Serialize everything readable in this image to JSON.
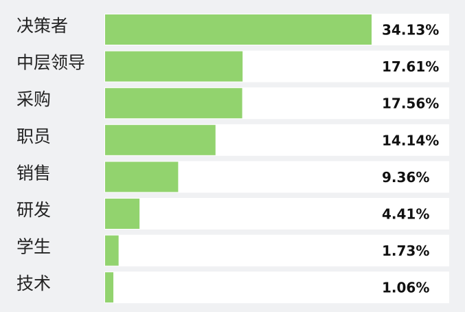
{
  "chart_data": {
    "type": "bar",
    "orientation": "horizontal",
    "categories": [
      "决策者",
      "中层领导",
      "采购",
      "职员",
      "销售",
      "研发",
      "学生",
      "技术"
    ],
    "values": [
      34.13,
      17.61,
      17.56,
      14.14,
      9.36,
      4.41,
      1.73,
      1.06
    ],
    "value_labels": [
      "34.13%",
      "17.61%",
      "17.56%",
      "14.14%",
      "9.36%",
      "4.41%",
      "1.73%",
      "1.06%"
    ],
    "color": "#92d36e"
  }
}
